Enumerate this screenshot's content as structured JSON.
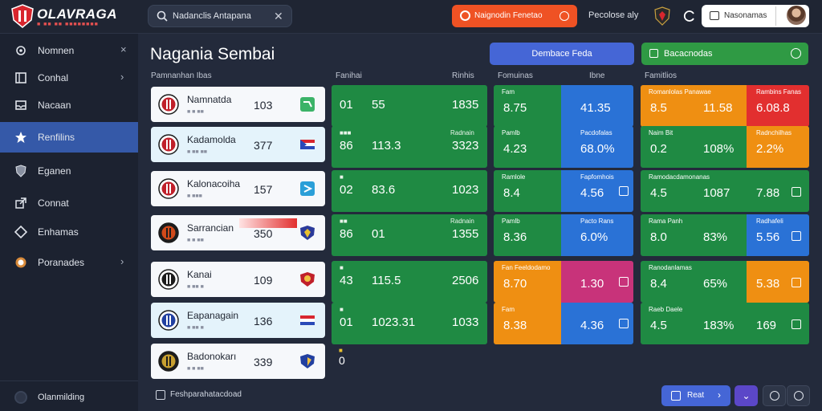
{
  "app": {
    "brand": "OLAVRAGA",
    "brand_sub": "■ ■■ ■■ ■■■■■■■■"
  },
  "search": {
    "value": "Nadanclis Antapana"
  },
  "topbar": {
    "red_button": "Naignodin Fenetao",
    "link": "Pecolose aly",
    "user_label": "Nasonamas"
  },
  "colors": {
    "green": "#1f8a43",
    "blue": "#2a72d6",
    "orange": "#ef8f12",
    "red": "#e22f2f",
    "magenta": "#c8337a",
    "accent": "#3559a8"
  },
  "sidebar": {
    "items": [
      {
        "label": "Nomnen",
        "icon": "gear-icon",
        "trail": "×",
        "active": false
      },
      {
        "label": "Conhal",
        "icon": "square-icon",
        "trail": "›",
        "active": false
      },
      {
        "label": "Nacaan",
        "icon": "inbox-icon",
        "trail": "",
        "active": false
      },
      {
        "label": "Renfilins",
        "icon": "star-icon",
        "trail": "",
        "active": true
      },
      {
        "label": "Eganen",
        "icon": "shield-icon",
        "trail": "",
        "active": false
      },
      {
        "label": "Connat",
        "icon": "external-link-icon",
        "trail": "",
        "active": false
      },
      {
        "label": "Enhamas",
        "icon": "diamond-icon",
        "trail": "",
        "active": false
      },
      {
        "label": "Poranades",
        "icon": "badge-icon",
        "trail": "›",
        "active": false
      }
    ],
    "footer": "Olanmilding"
  },
  "page": {
    "title": "Nagania Sembai",
    "blue_button": "Dembace Feda",
    "green_button": "Bacacnodas"
  },
  "columns": [
    "Pamnanhan Ibas",
    "Fanihai",
    "Rinhis",
    "Fomuinas",
    "Ibne",
    "Famitlios"
  ],
  "teams": [
    {
      "name": "Namnatda",
      "sub": "■ ■ ■■",
      "value": "103"
    },
    {
      "name": "Kadamolda",
      "sub": "■ ■■ ■■",
      "value": "377"
    },
    {
      "name": "Kalonacoiha",
      "sub": "■ ■■■",
      "value": "157"
    },
    {
      "name": "Sarrancian",
      "sub": "■ ■ ■■",
      "value": "350"
    },
    {
      "name": "Kanai",
      "sub": "■ ■■ ■",
      "value": "109"
    },
    {
      "name": "Eapanagain",
      "sub": "■ ■■ ■",
      "value": "136"
    },
    {
      "name": "Badonokarı",
      "sub": "■ ■ ■■",
      "value": "339"
    }
  ],
  "green_rows": [
    {
      "t1": "",
      "t2": "",
      "a": "01",
      "b": "55",
      "c": "1835"
    },
    {
      "t1": "■■■",
      "t2": "Radnain",
      "a": "86",
      "b": "113.3",
      "c": "3323"
    },
    {
      "t1": "■",
      "t2": "",
      "a": "02",
      "b": "83.6",
      "c": "1023"
    },
    {
      "t1": "■■",
      "t2": "Radnain",
      "a": "86",
      "b": "01",
      "c": "1355"
    },
    {
      "t1": "■",
      "t2": "",
      "a": "43",
      "b": "115.5",
      "c": "2506"
    },
    {
      "t1": "■",
      "t2": "",
      "a": "01",
      "b": "1023.31",
      "c": "1033"
    }
  ],
  "green_extra": {
    "t1": "■",
    "a": "0"
  },
  "split_rows": [
    {
      "tl": "Fam",
      "tr": "",
      "vl": "8.75",
      "vr": "41.35",
      "lc": "green",
      "rc": "blue"
    },
    {
      "tl": "Pamlb",
      "tr": "Pacdofalas",
      "vl": "4.23",
      "vr": "68.0%",
      "lc": "green",
      "rc": "blue"
    },
    {
      "tl": "Ramlole",
      "tr": "Fapfomhois",
      "vl": "8.4",
      "vr": "4.56",
      "lc": "green",
      "rc": "blue"
    },
    {
      "tl": "Pamlb",
      "tr": "Pacto Rans",
      "vl": "8.36",
      "vr": "6.0%",
      "lc": "green",
      "rc": "blue"
    },
    {
      "tl": "Fan Feeldodamo",
      "tr": "",
      "vl": "8.70",
      "vr": "1.30",
      "lc": "orange",
      "rc": "magenta"
    },
    {
      "tl": "Fam",
      "tr": "",
      "vl": "8.38",
      "vr": "4.36",
      "lc": "orange",
      "rc": "blue"
    }
  ],
  "tri_rows": [
    {
      "tl": "Romanlolas Panawae",
      "tr": "Rambins Fanas",
      "vl": "8.5",
      "vm": "11.58",
      "vr": "6.08.8",
      "lc": "orange",
      "rc": "red"
    },
    {
      "tl": "Naim Bit",
      "tr": "Radnchilhas",
      "vl": "0.2",
      "vm": "108%",
      "vr": "2.2%",
      "lc": "green",
      "rc": "orange"
    },
    {
      "tl": "Ramodacdamonanas",
      "tr": "",
      "vl": "4.5",
      "vm": "1087",
      "vr": "7.88",
      "lc": "green",
      "rc": "green"
    },
    {
      "tl": "Rama Panh",
      "tr": "Radhafeli",
      "vl": "8.0",
      "vm": "83%",
      "vr": "5.56",
      "lc": "green",
      "rc": "blue"
    },
    {
      "tl": "Ranodanlamas",
      "tr": "",
      "vl": "8.4",
      "vm": "65%",
      "vr": "5.38",
      "lc": "green",
      "rc": "orange"
    },
    {
      "tl": "Raeb Daele",
      "tr": "",
      "vl": "4.5",
      "vm": "183%",
      "vr": "169",
      "lc": "green",
      "rc": "green"
    }
  ],
  "bottom": {
    "note": "Feshparahatacdoad",
    "button": "Reat"
  }
}
